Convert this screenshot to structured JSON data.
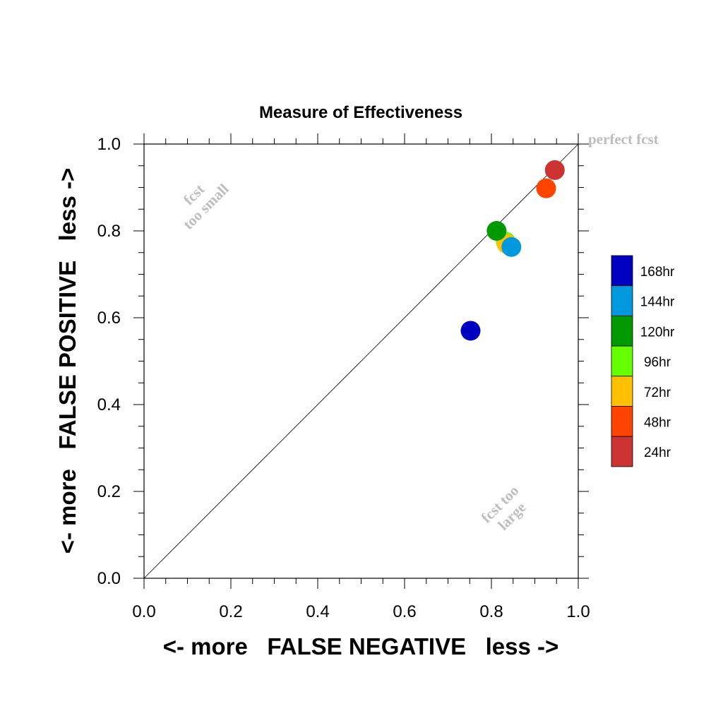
{
  "chart_data": {
    "type": "scatter",
    "title": "Measure of Effectiveness",
    "xlabel": "<- more   FALSE NEGATIVE   less ->",
    "ylabel": "<- more   FALSE POSITIVE   less ->",
    "xlim": [
      0,
      1
    ],
    "ylim": [
      0,
      1
    ],
    "x_ticks": [
      "0.0",
      "0.2",
      "0.4",
      "0.6",
      "0.8",
      "1.0"
    ],
    "y_ticks": [
      "0.0",
      "0.2",
      "0.4",
      "0.6",
      "0.8",
      "1.0"
    ],
    "grid": false,
    "diagonal_reference_line": true,
    "legend_position": "right",
    "series": [
      {
        "name": "168hr",
        "color": "#0000c0",
        "x": 0.752,
        "y": 0.57
      },
      {
        "name": "144hr",
        "color": "#0099dd",
        "x": 0.846,
        "y": 0.763
      },
      {
        "name": "120hr",
        "color": "#009900",
        "x": 0.812,
        "y": 0.8
      },
      {
        "name": "96hr",
        "color": "#66ff00",
        "x": 0.833,
        "y": 0.775
      },
      {
        "name": "72hr",
        "color": "#ffc000",
        "x": 0.835,
        "y": 0.77
      },
      {
        "name": "48hr",
        "color": "#ff4400",
        "x": 0.926,
        "y": 0.898
      },
      {
        "name": "24hr",
        "color": "#cc3333",
        "x": 0.946,
        "y": 0.94
      }
    ],
    "annotations": {
      "perfect": "perfect fcst",
      "small_line1": "fcst",
      "small_line2": "too small",
      "large_line1": "fcst too",
      "large_line2": "large"
    }
  }
}
